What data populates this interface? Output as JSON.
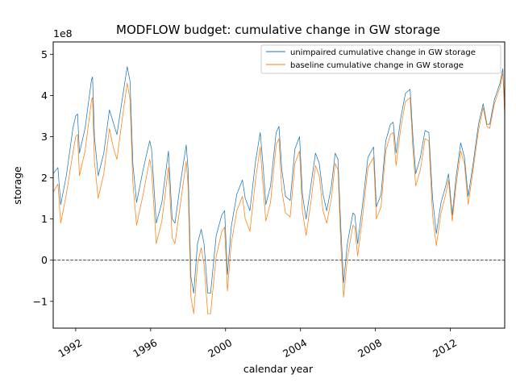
{
  "chart_data": {
    "type": "line",
    "title": "MODFLOW budget: cumulative change in GW storage",
    "xlabel": "calendar year",
    "ylabel": "storage",
    "y_offset_text": "1e8",
    "xlim": [
      1990.8,
      2014.9
    ],
    "ylim": [
      -1.65,
      5.3
    ],
    "x_ticks": [
      1992,
      1996,
      2000,
      2004,
      2008,
      2012
    ],
    "x_tick_labels": [
      "1992",
      "1996",
      "2000",
      "2004",
      "2008",
      "2012"
    ],
    "y_ticks": [
      -1,
      0,
      1,
      2,
      3,
      4,
      5
    ],
    "y_tick_labels": [
      "−1",
      "0",
      "1",
      "2",
      "3",
      "4",
      "5"
    ],
    "zero_line": true,
    "grid": false,
    "legend_position": "top-right",
    "series": [
      {
        "name": "unimpaired cumulative change in GW storage",
        "color": "#1f77b4",
        "points": [
          [
            1990.8,
            2.1
          ],
          [
            1991.05,
            2.25
          ],
          [
            1991.2,
            1.35
          ],
          [
            1991.5,
            2.05
          ],
          [
            1991.85,
            3.2
          ],
          [
            1992.0,
            3.5
          ],
          [
            1992.1,
            3.55
          ],
          [
            1992.2,
            2.6
          ],
          [
            1992.5,
            3.2
          ],
          [
            1992.85,
            4.4
          ],
          [
            1992.9,
            4.45
          ],
          [
            1993.0,
            3.0
          ],
          [
            1993.2,
            2.05
          ],
          [
            1993.5,
            2.6
          ],
          [
            1993.8,
            3.65
          ],
          [
            1994.0,
            3.35
          ],
          [
            1994.2,
            3.05
          ],
          [
            1994.55,
            4.1
          ],
          [
            1994.75,
            4.7
          ],
          [
            1994.9,
            4.35
          ],
          [
            1995.05,
            2.35
          ],
          [
            1995.25,
            1.4
          ],
          [
            1995.6,
            2.2
          ],
          [
            1995.95,
            2.9
          ],
          [
            1996.05,
            2.7
          ],
          [
            1996.3,
            0.9
          ],
          [
            1996.6,
            1.4
          ],
          [
            1996.95,
            2.65
          ],
          [
            1997.15,
            1.0
          ],
          [
            1997.3,
            0.9
          ],
          [
            1997.6,
            1.9
          ],
          [
            1997.9,
            2.8
          ],
          [
            1998.0,
            2.2
          ],
          [
            1998.15,
            -0.4
          ],
          [
            1998.3,
            -0.8
          ],
          [
            1998.5,
            0.4
          ],
          [
            1998.7,
            0.75
          ],
          [
            1998.85,
            0.4
          ],
          [
            1999.05,
            -0.8
          ],
          [
            1999.2,
            -0.8
          ],
          [
            1999.5,
            0.6
          ],
          [
            1999.8,
            1.1
          ],
          [
            1999.95,
            1.2
          ],
          [
            2000.1,
            -0.35
          ],
          [
            2000.3,
            0.8
          ],
          [
            2000.6,
            1.6
          ],
          [
            2000.9,
            1.95
          ],
          [
            2001.05,
            1.5
          ],
          [
            2001.3,
            1.2
          ],
          [
            2001.6,
            2.4
          ],
          [
            2001.85,
            3.1
          ],
          [
            2002.0,
            2.3
          ],
          [
            2002.15,
            1.35
          ],
          [
            2002.4,
            1.8
          ],
          [
            2002.7,
            3.1
          ],
          [
            2002.85,
            3.25
          ],
          [
            2003.0,
            2.2
          ],
          [
            2003.2,
            1.55
          ],
          [
            2003.45,
            1.45
          ],
          [
            2003.7,
            2.7
          ],
          [
            2003.95,
            3.0
          ],
          [
            2004.1,
            1.6
          ],
          [
            2004.3,
            1.0
          ],
          [
            2004.55,
            1.8
          ],
          [
            2004.8,
            2.6
          ],
          [
            2005.0,
            2.35
          ],
          [
            2005.2,
            1.6
          ],
          [
            2005.4,
            1.2
          ],
          [
            2005.65,
            1.8
          ],
          [
            2005.85,
            2.6
          ],
          [
            2006.0,
            2.45
          ],
          [
            2006.15,
            0.8
          ],
          [
            2006.3,
            -0.55
          ],
          [
            2006.5,
            0.4
          ],
          [
            2006.8,
            1.15
          ],
          [
            2006.9,
            1.1
          ],
          [
            2007.05,
            0.4
          ],
          [
            2007.3,
            1.3
          ],
          [
            2007.6,
            2.5
          ],
          [
            2007.9,
            2.75
          ],
          [
            2008.05,
            1.3
          ],
          [
            2008.3,
            1.6
          ],
          [
            2008.55,
            2.9
          ],
          [
            2008.8,
            3.3
          ],
          [
            2008.95,
            3.35
          ],
          [
            2009.1,
            2.6
          ],
          [
            2009.35,
            3.45
          ],
          [
            2009.6,
            4.05
          ],
          [
            2009.85,
            4.15
          ],
          [
            2010.0,
            3.0
          ],
          [
            2010.15,
            2.1
          ],
          [
            2010.4,
            2.5
          ],
          [
            2010.65,
            3.15
          ],
          [
            2010.85,
            3.1
          ],
          [
            2011.05,
            1.5
          ],
          [
            2011.25,
            0.65
          ],
          [
            2011.5,
            1.4
          ],
          [
            2011.75,
            1.8
          ],
          [
            2011.9,
            2.1
          ],
          [
            2012.1,
            1.1
          ],
          [
            2012.3,
            2.0
          ],
          [
            2012.55,
            2.85
          ],
          [
            2012.75,
            2.5
          ],
          [
            2012.95,
            1.55
          ],
          [
            2013.2,
            2.3
          ],
          [
            2013.5,
            3.3
          ],
          [
            2013.75,
            3.8
          ],
          [
            2013.95,
            3.3
          ],
          [
            2014.1,
            3.3
          ],
          [
            2014.35,
            3.9
          ],
          [
            2014.65,
            4.3
          ],
          [
            2014.8,
            4.65
          ],
          [
            2014.9,
            3.7
          ]
        ]
      },
      {
        "name": "baseline cumulative change in GW storage",
        "color": "#ff7f0e",
        "points": [
          [
            1990.8,
            1.65
          ],
          [
            1991.05,
            1.85
          ],
          [
            1991.2,
            0.9
          ],
          [
            1991.5,
            1.6
          ],
          [
            1991.85,
            2.6
          ],
          [
            1992.0,
            3.0
          ],
          [
            1992.1,
            3.05
          ],
          [
            1992.2,
            2.05
          ],
          [
            1992.5,
            2.65
          ],
          [
            1992.85,
            3.9
          ],
          [
            1992.9,
            3.95
          ],
          [
            1993.0,
            2.4
          ],
          [
            1993.2,
            1.5
          ],
          [
            1993.5,
            2.1
          ],
          [
            1993.8,
            3.2
          ],
          [
            1994.0,
            2.75
          ],
          [
            1994.2,
            2.45
          ],
          [
            1994.55,
            3.65
          ],
          [
            1994.75,
            4.3
          ],
          [
            1994.9,
            3.9
          ],
          [
            1995.05,
            1.9
          ],
          [
            1995.25,
            0.85
          ],
          [
            1995.6,
            1.6
          ],
          [
            1995.95,
            2.45
          ],
          [
            1996.05,
            2.2
          ],
          [
            1996.3,
            0.4
          ],
          [
            1996.6,
            0.95
          ],
          [
            1996.95,
            2.25
          ],
          [
            1997.15,
            0.55
          ],
          [
            1997.3,
            0.4
          ],
          [
            1997.6,
            1.4
          ],
          [
            1997.9,
            2.4
          ],
          [
            1998.0,
            1.8
          ],
          [
            1998.15,
            -0.9
          ],
          [
            1998.3,
            -1.3
          ],
          [
            1998.5,
            -0.1
          ],
          [
            1998.7,
            0.3
          ],
          [
            1998.85,
            -0.1
          ],
          [
            1999.05,
            -1.3
          ],
          [
            1999.2,
            -1.3
          ],
          [
            1999.5,
            0.1
          ],
          [
            1999.8,
            0.7
          ],
          [
            1999.95,
            0.8
          ],
          [
            2000.1,
            -0.75
          ],
          [
            2000.3,
            0.4
          ],
          [
            2000.6,
            1.2
          ],
          [
            2000.9,
            1.55
          ],
          [
            2001.05,
            1.0
          ],
          [
            2001.3,
            0.7
          ],
          [
            2001.6,
            1.95
          ],
          [
            2001.85,
            2.75
          ],
          [
            2002.0,
            1.8
          ],
          [
            2002.15,
            0.95
          ],
          [
            2002.4,
            1.4
          ],
          [
            2002.7,
            2.8
          ],
          [
            2002.85,
            2.95
          ],
          [
            2003.0,
            1.7
          ],
          [
            2003.2,
            1.15
          ],
          [
            2003.45,
            1.05
          ],
          [
            2003.7,
            2.35
          ],
          [
            2003.95,
            2.65
          ],
          [
            2004.1,
            1.2
          ],
          [
            2004.3,
            0.6
          ],
          [
            2004.55,
            1.4
          ],
          [
            2004.8,
            2.3
          ],
          [
            2005.0,
            2.05
          ],
          [
            2005.2,
            1.2
          ],
          [
            2005.4,
            0.9
          ],
          [
            2005.65,
            1.5
          ],
          [
            2005.85,
            2.35
          ],
          [
            2006.0,
            2.2
          ],
          [
            2006.15,
            0.4
          ],
          [
            2006.3,
            -0.9
          ],
          [
            2006.5,
            0.05
          ],
          [
            2006.8,
            0.85
          ],
          [
            2006.9,
            0.8
          ],
          [
            2007.05,
            0.1
          ],
          [
            2007.3,
            1.0
          ],
          [
            2007.6,
            2.25
          ],
          [
            2007.9,
            2.5
          ],
          [
            2008.05,
            1.0
          ],
          [
            2008.3,
            1.3
          ],
          [
            2008.55,
            2.65
          ],
          [
            2008.8,
            3.05
          ],
          [
            2008.95,
            3.1
          ],
          [
            2009.1,
            2.3
          ],
          [
            2009.35,
            3.2
          ],
          [
            2009.6,
            3.85
          ],
          [
            2009.85,
            3.95
          ],
          [
            2010.0,
            2.7
          ],
          [
            2010.15,
            1.8
          ],
          [
            2010.4,
            2.2
          ],
          [
            2010.65,
            2.95
          ],
          [
            2010.85,
            2.9
          ],
          [
            2011.05,
            1.1
          ],
          [
            2011.25,
            0.35
          ],
          [
            2011.5,
            1.15
          ],
          [
            2011.75,
            1.6
          ],
          [
            2011.9,
            1.95
          ],
          [
            2012.1,
            0.95
          ],
          [
            2012.3,
            1.8
          ],
          [
            2012.55,
            2.65
          ],
          [
            2012.75,
            2.35
          ],
          [
            2012.95,
            1.35
          ],
          [
            2013.2,
            2.15
          ],
          [
            2013.5,
            3.15
          ],
          [
            2013.75,
            3.7
          ],
          [
            2013.95,
            3.25
          ],
          [
            2014.1,
            3.2
          ],
          [
            2014.35,
            3.8
          ],
          [
            2014.65,
            4.2
          ],
          [
            2014.8,
            4.55
          ],
          [
            2014.9,
            3.5
          ]
        ]
      }
    ]
  }
}
